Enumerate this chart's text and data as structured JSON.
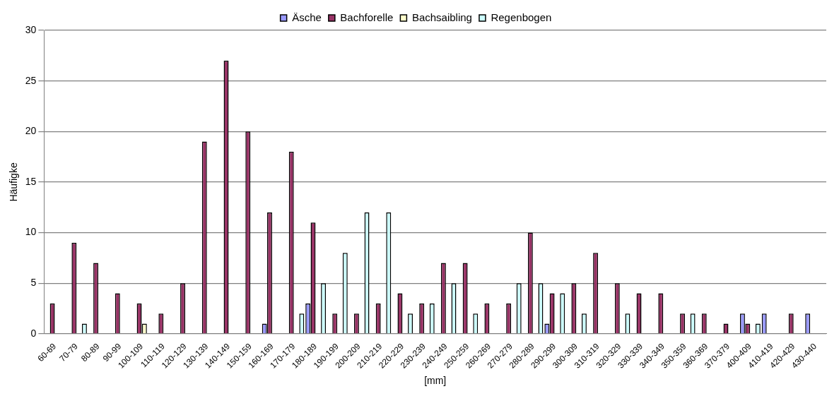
{
  "chart_data": {
    "type": "bar",
    "xlabel": "[mm]",
    "ylabel": "Häufigke",
    "categories": [
      "60-69",
      "70-79",
      "80-89",
      "90-99",
      "100-109",
      "110-119",
      "120-129",
      "130-139",
      "140-149",
      "150-159",
      "160-169",
      "170-179",
      "180-189",
      "190-199",
      "200-209",
      "210-219",
      "220-229",
      "230-239",
      "240-249",
      "250-259",
      "260-269",
      "270-279",
      "280-289",
      "290-299",
      "300-309",
      "310-319",
      "320-329",
      "330-339",
      "340-349",
      "350-359",
      "360-369",
      "370-379",
      "400-409",
      "410-419",
      "420-429",
      "430-440"
    ],
    "series": [
      {
        "name": "Äsche",
        "color": "#9999ff",
        "values": [
          null,
          null,
          null,
          null,
          null,
          null,
          null,
          null,
          null,
          null,
          1,
          null,
          3,
          null,
          null,
          null,
          null,
          null,
          null,
          null,
          null,
          null,
          null,
          1,
          null,
          null,
          null,
          null,
          null,
          null,
          null,
          null,
          2,
          2,
          null,
          2
        ]
      },
      {
        "name": "Bachforelle",
        "color": "#993366",
        "values": [
          3,
          9,
          7,
          4,
          3,
          2,
          5,
          19,
          27,
          20,
          12,
          18,
          11,
          2,
          2,
          3,
          4,
          3,
          7,
          7,
          3,
          3,
          10,
          4,
          5,
          8,
          5,
          4,
          4,
          2,
          2,
          1,
          1,
          null,
          2,
          null
        ]
      },
      {
        "name": "Bachsaibling",
        "color": "#ffffcc",
        "values": [
          null,
          null,
          null,
          null,
          1,
          null,
          null,
          null,
          null,
          null,
          null,
          null,
          null,
          null,
          null,
          null,
          null,
          null,
          null,
          null,
          null,
          null,
          null,
          null,
          null,
          null,
          null,
          null,
          null,
          null,
          null,
          null,
          null,
          null,
          null,
          null
        ]
      },
      {
        "name": "Regenbogen",
        "color": "#ccffff",
        "values": [
          null,
          1,
          null,
          null,
          null,
          null,
          null,
          null,
          null,
          null,
          null,
          2,
          5,
          8,
          12,
          12,
          2,
          3,
          5,
          2,
          null,
          5,
          5,
          4,
          2,
          null,
          2,
          null,
          null,
          2,
          null,
          null,
          1,
          null,
          null,
          null
        ]
      }
    ],
    "ylim": [
      0,
      30
    ],
    "yticks": [
      0,
      5,
      10,
      15,
      20,
      25,
      30
    ],
    "grid": "y",
    "legend": "top"
  }
}
